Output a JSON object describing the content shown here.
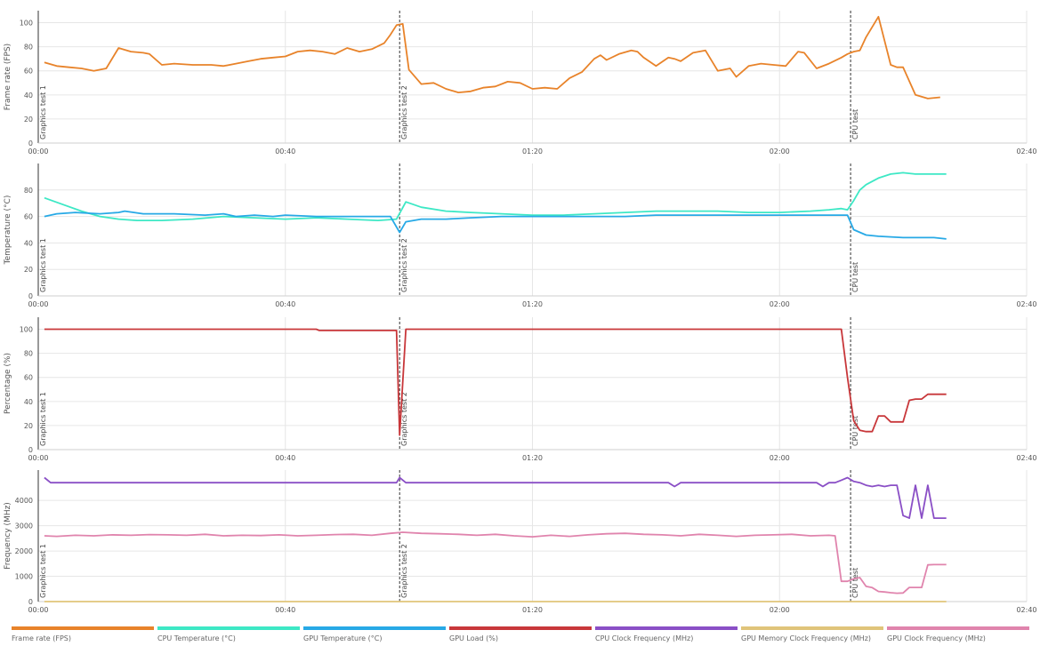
{
  "x_ticks": [
    "00:00",
    "00:40",
    "01:20",
    "02:00",
    "02:40"
  ],
  "markers": [
    {
      "t": 0,
      "label": "Graphics test 1"
    },
    {
      "t": 58.5,
      "label": "Graphics test 2"
    },
    {
      "t": 131.5,
      "label": "CPU test"
    }
  ],
  "legend": [
    {
      "label": "Frame rate (FPS)",
      "color": "#e8832a"
    },
    {
      "label": "CPU Temperature (°C)",
      "color": "#3de8c5"
    },
    {
      "label": "GPU Temperature (°C)",
      "color": "#27a9e6"
    },
    {
      "label": "GPU Load (%)",
      "color": "#c8373a"
    },
    {
      "label": "CPU Clock Frequency (MHz)",
      "color": "#8a4fc6"
    },
    {
      "label": "GPU Memory Clock Frequency (MHz)",
      "color": "#e0c47a"
    },
    {
      "label": "GPU Clock Frequency (MHz)",
      "color": "#e084ad"
    }
  ],
  "chart_data": [
    {
      "type": "line",
      "ylabel": "Frame rate (FPS)",
      "xlim": [
        0,
        160
      ],
      "ylim": [
        0,
        110
      ],
      "yticks": [
        0,
        20,
        40,
        60,
        80,
        100
      ],
      "series": [
        {
          "name": "Frame rate (FPS)",
          "color": "#e8832a",
          "x": [
            1,
            3,
            5,
            7,
            9,
            11,
            13,
            15,
            17,
            18,
            20,
            22,
            25,
            28,
            30,
            32,
            34,
            36,
            38,
            40,
            42,
            44,
            46,
            48,
            50,
            52,
            54,
            56,
            57,
            58,
            59,
            60,
            62,
            64,
            66,
            68,
            70,
            72,
            74,
            76,
            78,
            80,
            82,
            84,
            86,
            88,
            90,
            91,
            92,
            94,
            96,
            97,
            98,
            100,
            102,
            103,
            104,
            106,
            108,
            110,
            112,
            113,
            115,
            117,
            119,
            121,
            123,
            124,
            126,
            128,
            130,
            131,
            132,
            133,
            134,
            136,
            138,
            139,
            140,
            142,
            144,
            146
          ],
          "values": [
            67,
            64,
            63,
            62,
            60,
            62,
            79,
            76,
            75,
            74,
            65,
            66,
            65,
            65,
            64,
            66,
            68,
            70,
            71,
            72,
            76,
            77,
            76,
            74,
            79,
            76,
            78,
            83,
            90,
            98,
            99,
            61,
            49,
            50,
            45,
            42,
            43,
            46,
            47,
            51,
            50,
            45,
            46,
            45,
            54,
            59,
            70,
            73,
            69,
            74,
            77,
            76,
            71,
            64,
            71,
            70,
            68,
            75,
            77,
            60,
            62,
            55,
            64,
            66,
            65,
            64,
            76,
            75,
            62,
            66,
            71,
            74,
            76,
            77,
            88,
            105,
            65,
            63,
            63,
            40,
            37,
            38
          ]
        }
      ]
    },
    {
      "type": "line",
      "ylabel": "Temperature (°C)",
      "xlim": [
        0,
        160
      ],
      "ylim": [
        0,
        100
      ],
      "yticks": [
        0,
        20,
        40,
        60,
        80
      ],
      "series": [
        {
          "name": "CPU Temperature (°C)",
          "color": "#3de8c5",
          "x": [
            1,
            4,
            7,
            10,
            13,
            16,
            20,
            25,
            30,
            35,
            40,
            45,
            50,
            55,
            58,
            59.5,
            62,
            66,
            70,
            75,
            80,
            85,
            90,
            95,
            100,
            105,
            110,
            115,
            120,
            125,
            128,
            130,
            131,
            132,
            133,
            134,
            136,
            138,
            140,
            142,
            145,
            147
          ],
          "values": [
            74,
            69,
            64,
            60,
            58,
            57,
            57,
            58,
            60,
            59,
            58,
            59,
            58,
            57,
            58,
            71,
            67,
            64,
            63,
            62,
            61,
            61,
            62,
            63,
            64,
            64,
            64,
            63,
            63,
            64,
            65,
            66,
            65,
            72,
            80,
            84,
            89,
            92,
            93,
            92,
            92,
            92
          ]
        },
        {
          "name": "GPU Temperature (°C)",
          "color": "#27a9e6",
          "x": [
            1,
            3,
            6,
            10,
            13,
            14,
            17,
            22,
            27,
            30,
            32,
            35,
            38,
            40,
            45,
            50,
            55,
            57,
            58.5,
            59.5,
            62,
            66,
            70,
            75,
            80,
            85,
            90,
            95,
            100,
            105,
            110,
            115,
            120,
            125,
            129,
            131,
            132,
            134,
            136,
            140,
            145,
            147
          ],
          "values": [
            60,
            62,
            63,
            62,
            63,
            64,
            62,
            62,
            61,
            62,
            60,
            61,
            60,
            61,
            60,
            60,
            60,
            60,
            48,
            56,
            58,
            58,
            59,
            60,
            60,
            60,
            60,
            60,
            61,
            61,
            61,
            61,
            61,
            61,
            61,
            61,
            50,
            46,
            45,
            44,
            44,
            43
          ]
        }
      ]
    },
    {
      "type": "line",
      "ylabel": "Percentage (%)",
      "xlim": [
        0,
        160
      ],
      "ylim": [
        0,
        110
      ],
      "yticks": [
        0,
        20,
        40,
        60,
        80,
        100
      ],
      "series": [
        {
          "name": "GPU Load (%)",
          "color": "#c8373a",
          "x": [
            1,
            45,
            45.5,
            58,
            58.5,
            59.5,
            60,
            130,
            131,
            132,
            133,
            134,
            135,
            136,
            137,
            138,
            139,
            140,
            141,
            142,
            143,
            144,
            145,
            146,
            147
          ],
          "values": [
            100,
            100,
            99,
            99,
            12,
            100,
            100,
            100,
            60,
            24,
            16,
            15,
            15,
            28,
            28,
            23,
            23,
            23,
            41,
            42,
            42,
            46,
            46,
            46,
            46
          ]
        }
      ]
    },
    {
      "type": "line",
      "ylabel": "Frequency (MHz)",
      "xlim": [
        0,
        160
      ],
      "ylim": [
        0,
        5200
      ],
      "yticks": [
        0,
        1000,
        2000,
        3000,
        4000
      ],
      "series": [
        {
          "name": "CPU Clock Frequency (MHz)",
          "color": "#8a4fc6",
          "x": [
            1,
            2,
            20,
            40,
            57,
            58,
            58.5,
            59.5,
            70,
            90,
            100,
            102,
            103,
            104,
            110,
            120,
            125,
            126,
            127,
            128,
            129,
            130,
            131,
            132,
            133,
            134,
            135,
            136,
            137,
            138,
            139,
            140,
            141,
            142,
            143,
            144,
            145,
            146,
            147
          ],
          "values": [
            4900,
            4700,
            4700,
            4700,
            4700,
            4700,
            4900,
            4700,
            4700,
            4700,
            4700,
            4700,
            4550,
            4700,
            4700,
            4700,
            4700,
            4700,
            4550,
            4700,
            4700,
            4800,
            4900,
            4750,
            4700,
            4600,
            4550,
            4600,
            4550,
            4600,
            4600,
            3400,
            3300,
            4600,
            3300,
            4600,
            3300,
            3300,
            3300
          ]
        },
        {
          "name": "GPU Memory Clock Frequency (MHz)",
          "color": "#e0c47a",
          "x": [
            1,
            147
          ],
          "values": [
            0,
            0
          ]
        },
        {
          "name": "GPU Clock Frequency (MHz)",
          "color": "#e084ad",
          "x": [
            1,
            3,
            6,
            9,
            12,
            15,
            18,
            21,
            24,
            27,
            30,
            33,
            36,
            39,
            42,
            45,
            48,
            51,
            54,
            57,
            59,
            62,
            65,
            68,
            71,
            74,
            77,
            80,
            83,
            86,
            89,
            92,
            95,
            98,
            101,
            104,
            107,
            110,
            113,
            116,
            119,
            122,
            125,
            128,
            129,
            130,
            131,
            132,
            133,
            134,
            135,
            136,
            137,
            138,
            139,
            140,
            141,
            142,
            143,
            144,
            145,
            146,
            147
          ],
          "values": [
            2600,
            2580,
            2620,
            2600,
            2640,
            2620,
            2650,
            2640,
            2620,
            2660,
            2600,
            2620,
            2610,
            2640,
            2600,
            2620,
            2650,
            2660,
            2620,
            2700,
            2740,
            2700,
            2680,
            2660,
            2620,
            2660,
            2600,
            2560,
            2620,
            2580,
            2640,
            2680,
            2700,
            2660,
            2640,
            2600,
            2660,
            2620,
            2580,
            2620,
            2640,
            2660,
            2600,
            2620,
            2600,
            800,
            800,
            900,
            950,
            600,
            550,
            400,
            380,
            350,
            330,
            340,
            560,
            560,
            560,
            1450,
            1460,
            1460,
            1460
          ]
        }
      ]
    }
  ]
}
